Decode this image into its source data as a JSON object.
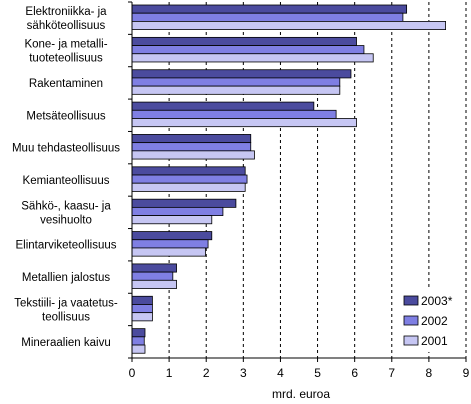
{
  "chart_data": {
    "type": "bar",
    "orientation": "horizontal",
    "categories": [
      [
        "Elektroniikka- ja",
        "sähköteollisuus"
      ],
      [
        "Kone- ja metalli-",
        "tuoteteollisuus"
      ],
      [
        "Rakentaminen"
      ],
      [
        "Metsäteollisuus"
      ],
      [
        "Muu tehdasteollisuus"
      ],
      [
        "Kemianteollisuus"
      ],
      [
        "Sähkö-, kaasu- ja",
        "vesihuolto"
      ],
      [
        "Elintarviketeollisuus"
      ],
      [
        "Metallien jalostus"
      ],
      [
        "Tekstiili- ja vaatetus-",
        "teollisuus"
      ],
      [
        "Mineraalien kaivu"
      ]
    ],
    "series": [
      {
        "name": "2003*",
        "color": "#4b4b9e",
        "values": [
          7.4,
          6.05,
          5.9,
          4.9,
          3.2,
          3.05,
          2.8,
          2.15,
          1.2,
          0.55,
          0.35
        ]
      },
      {
        "name": "2002",
        "color": "#7f7fe3",
        "values": [
          7.3,
          6.25,
          5.6,
          5.5,
          3.2,
          3.1,
          2.45,
          2.05,
          1.1,
          0.55,
          0.33
        ]
      },
      {
        "name": "2001",
        "color": "#c6c6f3",
        "values": [
          8.45,
          6.5,
          5.6,
          6.05,
          3.3,
          3.05,
          2.15,
          1.98,
          1.2,
          0.55,
          0.35
        ]
      }
    ],
    "xlim": [
      0,
      9
    ],
    "xticks": [
      "0",
      "1",
      "2",
      "3",
      "4",
      "5",
      "6",
      "7",
      "8",
      "9"
    ],
    "xlabel": "mrd. euroa",
    "ylabel": "",
    "grid": "vertical dashed",
    "legend_position": "bottom-right"
  }
}
